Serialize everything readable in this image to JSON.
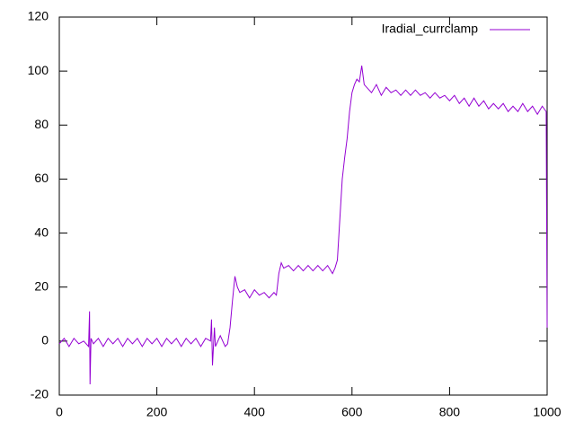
{
  "chart_data": {
    "type": "line",
    "x": [
      0,
      10,
      20,
      30,
      40,
      50,
      60,
      62,
      63,
      65,
      70,
      80,
      90,
      100,
      110,
      120,
      130,
      140,
      150,
      160,
      170,
      180,
      190,
      200,
      210,
      220,
      230,
      240,
      250,
      260,
      270,
      280,
      290,
      300,
      310,
      312,
      314,
      318,
      320,
      330,
      340,
      345,
      350,
      355,
      360,
      365,
      370,
      380,
      390,
      400,
      410,
      420,
      430,
      440,
      445,
      450,
      455,
      460,
      470,
      480,
      490,
      500,
      510,
      520,
      530,
      540,
      550,
      560,
      565,
      570,
      575,
      580,
      585,
      590,
      595,
      600,
      605,
      610,
      615,
      620,
      625,
      630,
      640,
      650,
      660,
      670,
      680,
      690,
      700,
      710,
      720,
      730,
      740,
      750,
      760,
      770,
      780,
      790,
      800,
      810,
      820,
      830,
      840,
      850,
      860,
      870,
      880,
      890,
      900,
      910,
      920,
      930,
      940,
      950,
      960,
      970,
      980,
      990,
      998,
      1000
    ],
    "series": [
      {
        "name": "Iradial_currclamp",
        "color": "#9400d3",
        "values": [
          -1,
          1,
          -2,
          1,
          -1,
          0,
          -2,
          11,
          -16,
          1,
          -1,
          1,
          -2,
          1,
          -1,
          1,
          -2,
          1,
          -1,
          1,
          -2,
          1,
          -1,
          1,
          -2,
          1,
          -1,
          1,
          -2,
          1,
          -1,
          1,
          -2,
          1,
          0,
          8,
          -9,
          5,
          -2,
          2,
          -2,
          -1,
          5,
          15,
          24,
          20,
          18,
          19,
          16,
          19,
          17,
          18,
          16,
          18,
          17,
          25,
          29,
          27,
          28,
          26,
          28,
          26,
          28,
          26,
          28,
          26,
          28,
          25,
          27,
          30,
          45,
          60,
          68,
          75,
          85,
          92,
          95,
          97,
          96,
          102,
          95,
          94,
          92,
          95,
          91,
          94,
          92,
          93,
          91,
          93,
          91,
          93,
          91,
          92,
          90,
          92,
          90,
          91,
          89,
          91,
          88,
          90,
          87,
          90,
          87,
          89,
          86,
          88,
          86,
          88,
          85,
          87,
          85,
          88,
          85,
          87,
          84,
          87,
          85,
          5
        ]
      }
    ],
    "xlim": [
      0,
      1000
    ],
    "xticks": [
      0,
      200,
      400,
      600,
      800,
      1000
    ],
    "ylim": [
      -20,
      120
    ],
    "yticks": [
      -20,
      0,
      20,
      40,
      60,
      80,
      100,
      120
    ],
    "legend": "top-right"
  }
}
